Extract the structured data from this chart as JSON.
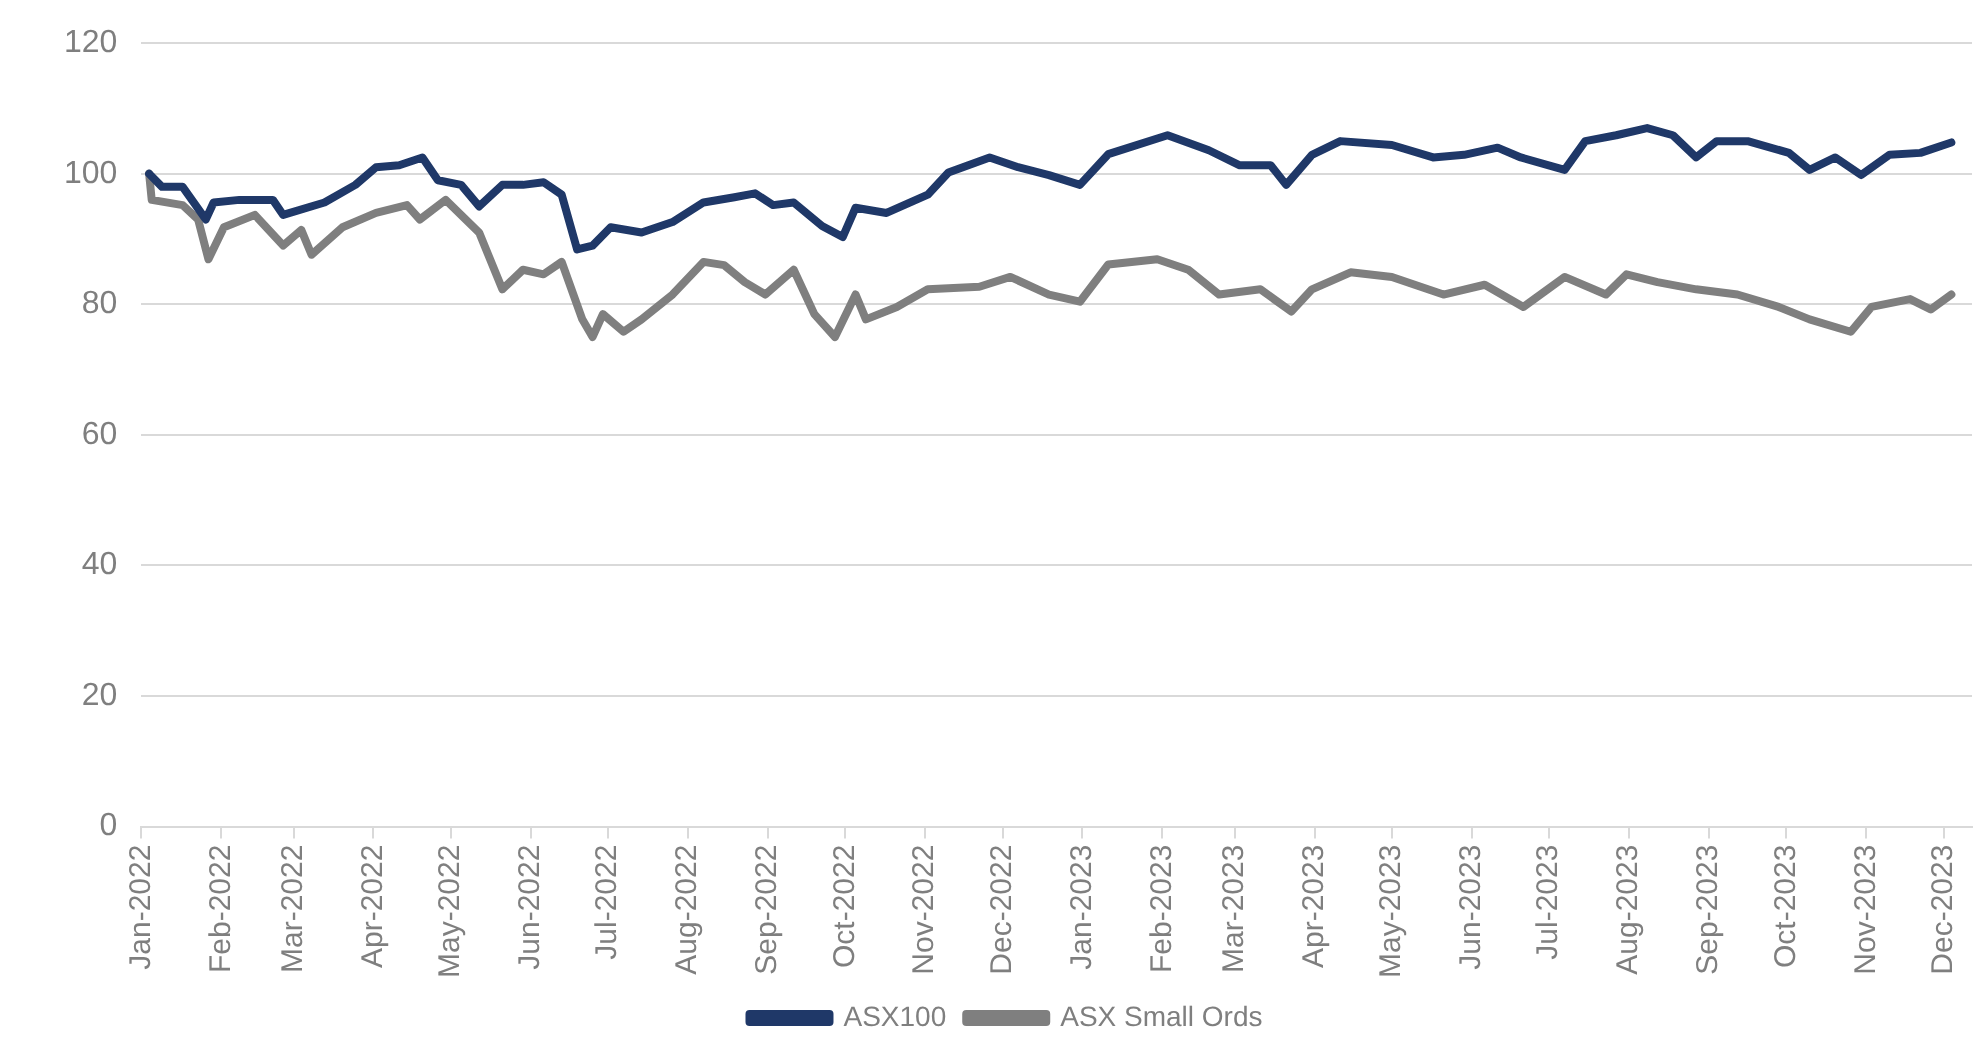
{
  "chart_data": {
    "type": "line",
    "xlim": [
      "2022-01-01",
      "2023-12-12"
    ],
    "ylim": [
      0,
      120
    ],
    "yticks": [
      0,
      20,
      40,
      60,
      80,
      100,
      120
    ],
    "xticks": [
      {
        "value": "2022-01",
        "label": "Jan-2022"
      },
      {
        "value": "2022-02",
        "label": "Feb-2022"
      },
      {
        "value": "2022-03",
        "label": "Mar-2022"
      },
      {
        "value": "2022-04",
        "label": "Apr-2022"
      },
      {
        "value": "2022-05",
        "label": "May-2022"
      },
      {
        "value": "2022-06",
        "label": "Jun-2022"
      },
      {
        "value": "2022-07",
        "label": "Jul-2022"
      },
      {
        "value": "2022-08",
        "label": "Aug-2022"
      },
      {
        "value": "2022-09",
        "label": "Sep-2022"
      },
      {
        "value": "2022-10",
        "label": "Oct-2022"
      },
      {
        "value": "2022-11",
        "label": "Nov-2022"
      },
      {
        "value": "2022-12",
        "label": "Dec-2022"
      },
      {
        "value": "2023-01",
        "label": "Jan-2023"
      },
      {
        "value": "2023-02",
        "label": "Feb-2023"
      },
      {
        "value": "2023-03",
        "label": "Mar-2023"
      },
      {
        "value": "2023-04",
        "label": "Apr-2023"
      },
      {
        "value": "2023-05",
        "label": "May-2023"
      },
      {
        "value": "2023-06",
        "label": "Jun-2023"
      },
      {
        "value": "2023-07",
        "label": "Jul-2023"
      },
      {
        "value": "2023-08",
        "label": "Aug-2023"
      },
      {
        "value": "2023-09",
        "label": "Sep-2023"
      },
      {
        "value": "2023-10",
        "label": "Oct-2023"
      },
      {
        "value": "2023-11",
        "label": "Nov-2023"
      },
      {
        "value": "2023-12",
        "label": "Dec-2023"
      }
    ],
    "grid": "y",
    "legend": "bottom",
    "marker": "none",
    "line_style": "solid",
    "series": [
      {
        "name": "ASX100",
        "color": "#1f3868",
        "x": [
          "2022-01-04",
          "2022-01-09",
          "2022-01-17",
          "2022-01-26",
          "2022-01-29",
          "2022-02-08",
          "2022-02-21",
          "2022-02-25",
          "2022-03-13",
          "2022-03-25",
          "2022-04-02",
          "2022-04-11",
          "2022-04-20",
          "2022-04-26",
          "2022-05-05",
          "2022-05-12",
          "2022-05-21",
          "2022-05-29",
          "2022-06-06",
          "2022-06-13",
          "2022-06-19",
          "2022-06-25",
          "2022-07-02",
          "2022-07-14",
          "2022-07-26",
          "2022-08-07",
          "2022-08-19",
          "2022-08-27",
          "2022-09-03",
          "2022-09-11",
          "2022-09-22",
          "2022-09-30",
          "2022-10-05",
          "2022-10-17",
          "2022-11-02",
          "2022-11-10",
          "2022-11-26",
          "2022-12-07",
          "2022-12-19",
          "2022-12-31",
          "2023-01-11",
          "2023-02-03",
          "2023-02-19",
          "2023-03-03",
          "2023-03-15",
          "2023-03-21",
          "2023-03-31",
          "2023-04-11",
          "2023-05-01",
          "2023-05-17",
          "2023-05-29",
          "2023-06-11",
          "2023-06-20",
          "2023-07-07",
          "2023-07-15",
          "2023-07-27",
          "2023-08-08",
          "2023-08-18",
          "2023-08-27",
          "2023-09-04",
          "2023-09-16",
          "2023-10-02",
          "2023-10-10",
          "2023-10-20",
          "2023-10-30",
          "2023-11-10",
          "2023-11-22",
          "2023-12-04"
        ],
        "values": [
          100,
          98,
          98,
          93,
          95.6,
          96,
          96,
          93.7,
          95.6,
          98.3,
          101,
          101.3,
          102.5,
          99,
          98.3,
          95,
          98.3,
          98.3,
          98.7,
          96.8,
          88.4,
          89,
          91.8,
          91,
          92.6,
          95.6,
          96.4,
          97,
          95.2,
          95.6,
          92,
          90.3,
          94.8,
          94,
          96.8,
          100.2,
          102.5,
          101,
          99.8,
          98.3,
          103,
          105.9,
          103.6,
          101.3,
          101.3,
          98.3,
          102.9,
          105,
          104.4,
          102.5,
          102.9,
          104,
          102.5,
          100.6,
          105,
          105.9,
          107,
          105.9,
          102.5,
          105,
          105,
          103.2,
          100.6,
          102.5,
          99.8,
          102.9,
          103.2,
          104.8
        ]
      },
      {
        "name": "ASX Small Ords",
        "color": "#7f7f7f",
        "x": [
          "2022-01-04",
          "2022-01-05",
          "2022-01-17",
          "2022-01-23",
          "2022-01-27",
          "2022-02-02",
          "2022-02-14",
          "2022-02-25",
          "2022-03-04",
          "2022-03-08",
          "2022-03-20",
          "2022-04-02",
          "2022-04-14",
          "2022-04-19",
          "2022-04-29",
          "2022-05-12",
          "2022-05-21",
          "2022-05-29",
          "2022-06-06",
          "2022-06-13",
          "2022-06-21",
          "2022-06-25",
          "2022-06-29",
          "2022-07-07",
          "2022-07-14",
          "2022-07-26",
          "2022-08-07",
          "2022-08-15",
          "2022-08-23",
          "2022-08-31",
          "2022-09-11",
          "2022-09-19",
          "2022-09-27",
          "2022-10-05",
          "2022-10-09",
          "2022-10-21",
          "2022-11-02",
          "2022-11-22",
          "2022-12-04",
          "2022-12-19",
          "2022-12-31",
          "2023-01-11",
          "2023-01-30",
          "2023-02-11",
          "2023-02-23",
          "2023-03-11",
          "2023-03-23",
          "2023-03-31",
          "2023-04-15",
          "2023-05-01",
          "2023-05-21",
          "2023-06-06",
          "2023-06-21",
          "2023-07-07",
          "2023-07-23",
          "2023-07-31",
          "2023-08-12",
          "2023-08-27",
          "2023-09-12",
          "2023-09-28",
          "2023-10-10",
          "2023-10-26",
          "2023-11-03",
          "2023-11-18",
          "2023-11-26",
          "2023-12-04"
        ],
        "values": [
          100,
          96,
          95.2,
          93,
          86.9,
          91.8,
          93.7,
          89,
          91.4,
          87.6,
          91.8,
          94,
          95.2,
          93,
          96,
          91,
          82.3,
          85.3,
          84.6,
          86.5,
          77.7,
          75,
          78.5,
          75.8,
          77.7,
          81.5,
          86.5,
          86,
          83.4,
          81.5,
          85.3,
          78.5,
          75,
          81.5,
          77.7,
          79.6,
          82.3,
          82.7,
          84.2,
          81.5,
          80.4,
          86.1,
          86.9,
          85.3,
          81.5,
          82.3,
          78.9,
          82.3,
          84.9,
          84.2,
          81.5,
          83,
          79.6,
          84.2,
          81.5,
          84.6,
          83.4,
          82.3,
          81.5,
          79.6,
          77.7,
          75.8,
          79.6,
          80.8,
          79.2,
          81.5
        ]
      }
    ]
  }
}
